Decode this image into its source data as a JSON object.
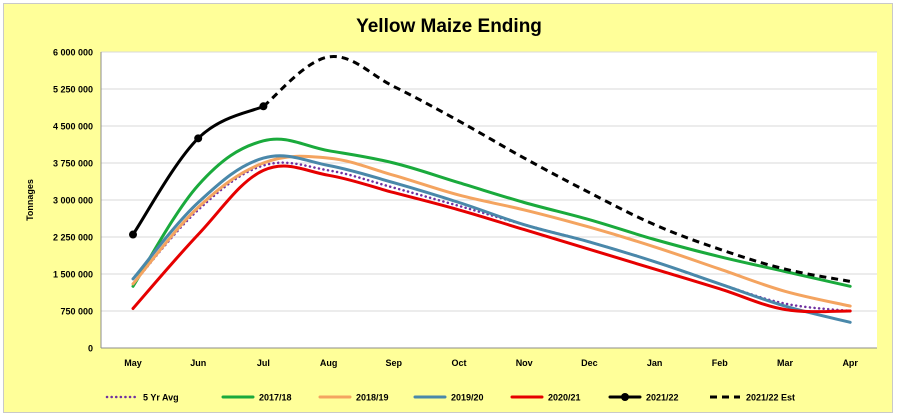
{
  "chart_data": {
    "type": "line",
    "title": "Yellow Maize Ending",
    "xlabel": "",
    "ylabel": "Tonnages",
    "ylim": [
      0,
      6000000
    ],
    "yticks": [
      0,
      750000,
      1500000,
      2250000,
      3000000,
      3750000,
      4500000,
      5250000,
      6000000
    ],
    "ytick_labels": [
      "0",
      "750 000",
      "1 500 000",
      "2 250 000",
      "3 000 000",
      "3 750 000",
      "4 500 000",
      "5 250 000",
      "6 000 000"
    ],
    "categories": [
      "May",
      "Jun",
      "Jul",
      "Aug",
      "Sep",
      "Oct",
      "Nov",
      "Dec",
      "Jan",
      "Feb",
      "Mar",
      "Apr"
    ],
    "grid": true,
    "legend_position": "bottom",
    "series": [
      {
        "name": "5 Yr Avg",
        "color": "#7030a0",
        "style": "dotted",
        "values": [
          1300000,
          2800000,
          3700000,
          3600000,
          3250000,
          2880000,
          2500000,
          2150000,
          1750000,
          1300000,
          900000,
          750000
        ]
      },
      {
        "name": "2017/18",
        "color": "#1aaa3c",
        "style": "solid",
        "values": [
          1250000,
          3300000,
          4200000,
          4000000,
          3750000,
          3350000,
          2950000,
          2600000,
          2200000,
          1850000,
          1550000,
          1250000
        ]
      },
      {
        "name": "2018/19",
        "color": "#f4a460",
        "style": "solid",
        "values": [
          1300000,
          2850000,
          3750000,
          3850000,
          3500000,
          3100000,
          2800000,
          2450000,
          2050000,
          1600000,
          1150000,
          850000
        ]
      },
      {
        "name": "2019/20",
        "color": "#4a88aa",
        "style": "solid",
        "values": [
          1400000,
          2950000,
          3850000,
          3700000,
          3350000,
          2950000,
          2500000,
          2150000,
          1750000,
          1300000,
          850000,
          520000
        ]
      },
      {
        "name": "2020/21",
        "color": "#e60000",
        "style": "solid",
        "values": [
          800000,
          2300000,
          3600000,
          3500000,
          3150000,
          2800000,
          2400000,
          2000000,
          1600000,
          1200000,
          780000,
          750000
        ]
      },
      {
        "name": "2021/22",
        "color": "#000000",
        "style": "solid-markers",
        "values": [
          2300000,
          4250000,
          4900000,
          null,
          null,
          null,
          null,
          null,
          null,
          null,
          null,
          null
        ]
      },
      {
        "name": "2021/22 Est",
        "color": "#000000",
        "style": "dashed",
        "values": [
          null,
          null,
          4900000,
          5900000,
          5300000,
          4600000,
          3850000,
          3150000,
          2500000,
          2000000,
          1600000,
          1350000
        ]
      }
    ]
  }
}
